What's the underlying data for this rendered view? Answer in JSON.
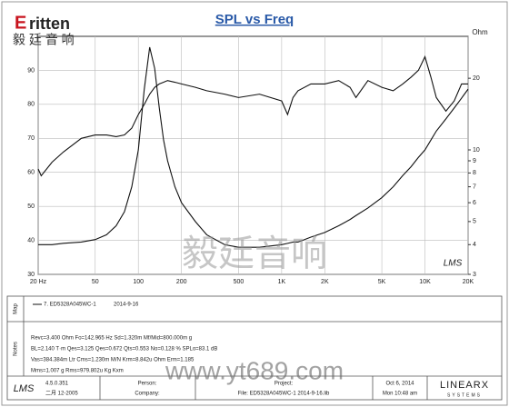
{
  "logo": {
    "brand": "ritten",
    "chinese": "毅 廷 音 响"
  },
  "watermark": {
    "chinese": "毅廷音响",
    "url": "www.yt689.com"
  },
  "chart_data": {
    "type": "line",
    "title": "SPL vs Freq",
    "plot_label": "LMS",
    "y2_label": "Ohm",
    "x": [
      20,
      21,
      25,
      30,
      40,
      50,
      60,
      70,
      80,
      90,
      100,
      110,
      120,
      130,
      140,
      150,
      160,
      180,
      200,
      250,
      300,
      400,
      500,
      700,
      1000,
      1100,
      1200,
      1300,
      1600,
      2000,
      2500,
      3000,
      3300,
      4000,
      5000,
      6000,
      7000,
      8000,
      9000,
      10000,
      11000,
      12000,
      14000,
      16000,
      18000,
      20000
    ],
    "series": [
      {
        "color": "#111",
        "values": [
          61,
          59,
          63,
          66,
          70,
          71,
          71,
          70.5,
          71,
          73,
          77,
          80,
          83,
          85,
          86,
          86.5,
          87,
          86.5,
          86,
          85,
          84,
          83,
          82,
          83,
          81,
          77,
          82,
          84,
          86,
          86,
          87,
          85,
          82,
          87,
          85,
          84,
          86,
          88,
          90,
          94,
          88,
          82,
          78,
          81,
          86,
          86
        ]
      },
      {
        "color": "#111",
        "axis": "y2",
        "values": [
          4.0,
          4.0,
          4.0,
          4.05,
          4.1,
          4.2,
          4.4,
          4.8,
          5.5,
          7,
          10,
          18,
          27,
          22,
          15,
          11,
          9,
          7,
          6,
          5,
          4.4,
          4.0,
          3.9,
          3.9,
          4.0,
          4.05,
          4.1,
          4.1,
          4.3,
          4.5,
          4.8,
          5.1,
          5.3,
          5.7,
          6.3,
          7,
          7.8,
          8.5,
          9.3,
          10,
          11,
          12,
          13.5,
          15,
          16.5,
          18
        ]
      }
    ],
    "xlim": [
      20,
      20000
    ],
    "xscale": "log",
    "xticks": [
      {
        "value": 20,
        "label": "20 Hz"
      },
      50,
      100,
      200,
      500,
      {
        "value": 1000,
        "label": "1K"
      },
      {
        "value": 2000,
        "label": "2K"
      },
      {
        "value": 5000,
        "label": "5K"
      },
      {
        "value": 10000,
        "label": "10K"
      },
      {
        "value": 20000,
        "label": "20K"
      }
    ],
    "ylim": [
      30,
      100
    ],
    "yticks": [
      30,
      40,
      50,
      60,
      70,
      80,
      90
    ],
    "y2lim": [
      3,
      30
    ],
    "y2scale": "log",
    "y2ticks": [
      3,
      4,
      5,
      6,
      7,
      8,
      9,
      10,
      20
    ],
    "grid": true
  },
  "panel": {
    "map_label": "Map",
    "notes_label": "Notes",
    "map_entry": "7. ED5328A045WC-1",
    "map_date": "2014-9-16",
    "notes": [
      "Revc=3.400 Ohm  Fo=142.965 Hz  Sd=1.320m Mf/Mid=800.000m g",
      "BL=2.140 T·m  Qes=3.125  Qes=0.672  Qts=0.553  No=0.128 %  SPLo=83.1 dB",
      "Vas=384.384m Ltr  Cms=1.230m M/N  Krm=8.842u Ohm  Erm=1.185",
      "Mms=1.007 g  Rms=979.802u Kg  Kxm"
    ],
    "footer": {
      "lms": "LMS",
      "version": "4.5.0.351",
      "build": "二月 12-2005",
      "person": "Person:",
      "company": "Company:",
      "project": "Project:",
      "file": "File: ED5328A045WC-1  2014-9-16.lib",
      "date": "Oct 6, 2014",
      "time": "Mon 10:48 am",
      "vendor": "LINEARX",
      "vendor_sub": "SYSTEMS"
    }
  }
}
